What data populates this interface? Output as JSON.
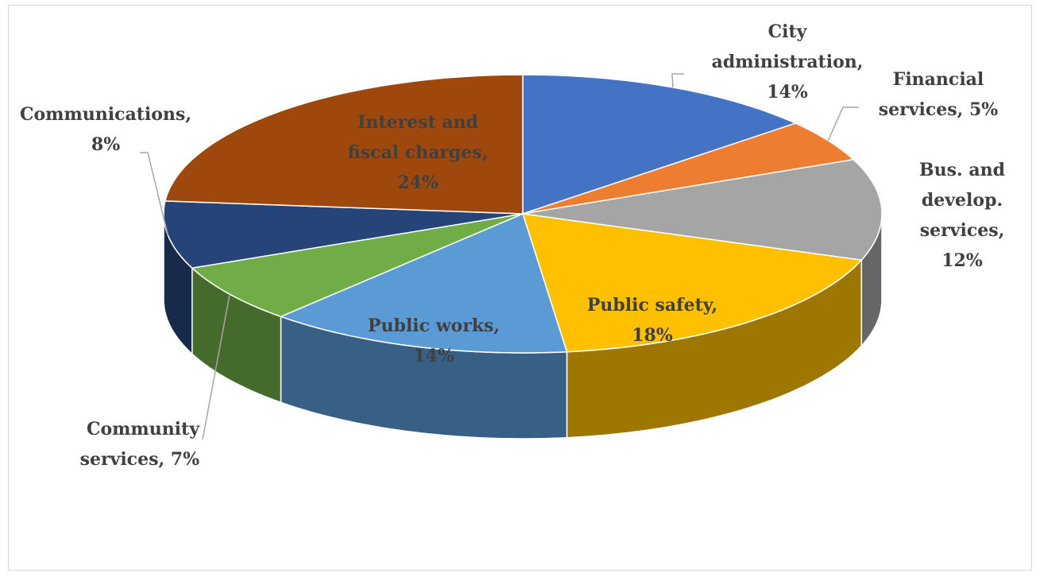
{
  "chart_data": {
    "type": "pie",
    "style": "3d",
    "title": "",
    "slices": [
      {
        "name": "City administration",
        "value": 14,
        "color": "#4472C4",
        "label_lines": [
          "City",
          "administration,",
          "14%"
        ]
      },
      {
        "name": "Financial services",
        "value": 5,
        "color": "#ED7D31",
        "label_lines": [
          "Financial",
          "services, 5%"
        ]
      },
      {
        "name": "Bus. and develop. services",
        "value": 12,
        "color": "#A5A5A5",
        "label_lines": [
          "Bus. and",
          "develop.",
          "services,",
          "12%"
        ]
      },
      {
        "name": "Public safety",
        "value": 18,
        "color": "#FFC000",
        "label_lines": [
          "Public safety,",
          "18%"
        ]
      },
      {
        "name": "Public works",
        "value": 14,
        "color": "#5B9BD5",
        "label_lines": [
          "Public works,",
          "14%"
        ]
      },
      {
        "name": "Community services",
        "value": 7,
        "color": "#70AD47",
        "label_lines": [
          "Community",
          "services, 7%"
        ]
      },
      {
        "name": "Communications",
        "value": 8,
        "color": "#264478",
        "label_lines": [
          "Communications,",
          "8%"
        ]
      },
      {
        "name": "Interest and fiscal charges",
        "value": 24,
        "color": "#9E480E",
        "label_lines": [
          "Interest and",
          "fiscal charges,",
          "24%"
        ]
      }
    ]
  }
}
